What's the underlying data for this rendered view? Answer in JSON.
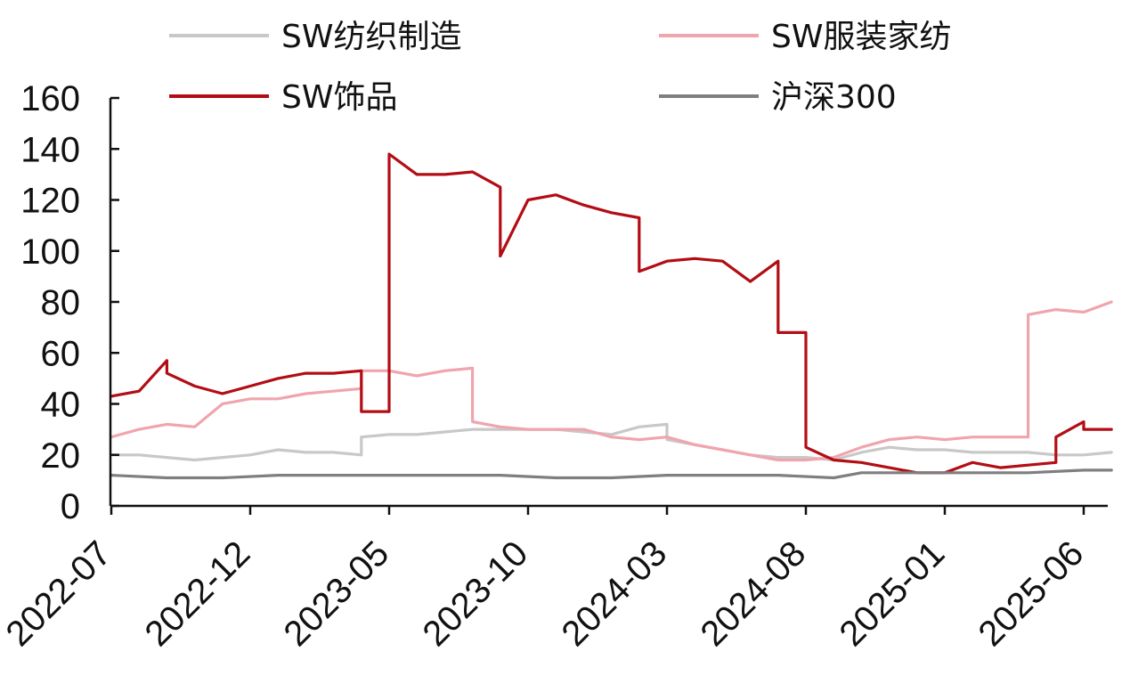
{
  "chart_data": {
    "type": "line",
    "title": "",
    "xlabel": "",
    "ylabel": "",
    "ylim": [
      0,
      160
    ],
    "yticks": [
      0,
      20,
      40,
      60,
      80,
      100,
      120,
      140,
      160
    ],
    "xlim": [
      "2022-07",
      "2025-06"
    ],
    "xticks": [
      "2022-07",
      "2022-12",
      "2023-05",
      "2023-10",
      "2024-03",
      "2024-08",
      "2025-01",
      "2025-06"
    ],
    "legend": "top",
    "grid": false,
    "series": [
      {
        "name": "SW纺织制造",
        "color": "#c8c8c8",
        "points": [
          [
            "2022-07",
            20
          ],
          [
            "2022-08",
            20
          ],
          [
            "2022-09",
            19
          ],
          [
            "2022-10",
            18
          ],
          [
            "2022-11",
            19
          ],
          [
            "2022-12",
            20
          ],
          [
            "2023-01",
            22
          ],
          [
            "2023-02",
            21
          ],
          [
            "2023-03",
            21
          ],
          [
            "2023-04",
            20
          ],
          [
            "2023-04",
            27
          ],
          [
            "2023-05",
            28
          ],
          [
            "2023-06",
            28
          ],
          [
            "2023-07",
            29
          ],
          [
            "2023-08",
            30
          ],
          [
            "2023-09",
            30
          ],
          [
            "2023-10",
            30
          ],
          [
            "2023-11",
            30
          ],
          [
            "2023-12",
            29
          ],
          [
            "2024-01",
            28
          ],
          [
            "2024-02",
            31
          ],
          [
            "2024-03",
            32
          ],
          [
            "2024-03",
            26
          ],
          [
            "2024-04",
            24
          ],
          [
            "2024-05",
            22
          ],
          [
            "2024-06",
            20
          ],
          [
            "2024-07",
            19
          ],
          [
            "2024-08",
            19
          ],
          [
            "2024-09",
            18
          ],
          [
            "2024-10",
            21
          ],
          [
            "2024-11",
            23
          ],
          [
            "2024-12",
            22
          ],
          [
            "2025-01",
            22
          ],
          [
            "2025-02",
            21
          ],
          [
            "2025-03",
            21
          ],
          [
            "2025-04",
            21
          ],
          [
            "2025-05",
            20
          ],
          [
            "2025-06",
            20
          ],
          [
            "2025-07",
            21
          ]
        ]
      },
      {
        "name": "SW服装家纺",
        "color": "#f0a5ad",
        "points": [
          [
            "2022-07",
            27
          ],
          [
            "2022-08",
            30
          ],
          [
            "2022-09",
            32
          ],
          [
            "2022-10",
            31
          ],
          [
            "2022-11",
            40
          ],
          [
            "2022-12",
            42
          ],
          [
            "2023-01",
            42
          ],
          [
            "2023-02",
            44
          ],
          [
            "2023-03",
            45
          ],
          [
            "2023-04",
            46
          ],
          [
            "2023-04",
            53
          ],
          [
            "2023-05",
            53
          ],
          [
            "2023-06",
            51
          ],
          [
            "2023-07",
            53
          ],
          [
            "2023-08",
            54
          ],
          [
            "2023-08",
            33
          ],
          [
            "2023-09",
            31
          ],
          [
            "2023-10",
            30
          ],
          [
            "2023-11",
            30
          ],
          [
            "2023-12",
            30
          ],
          [
            "2024-01",
            27
          ],
          [
            "2024-02",
            26
          ],
          [
            "2024-03",
            27
          ],
          [
            "2024-04",
            24
          ],
          [
            "2024-05",
            22
          ],
          [
            "2024-06",
            20
          ],
          [
            "2024-07",
            18
          ],
          [
            "2024-08",
            18
          ],
          [
            "2024-09",
            19
          ],
          [
            "2024-10",
            23
          ],
          [
            "2024-11",
            26
          ],
          [
            "2024-12",
            27
          ],
          [
            "2025-01",
            26
          ],
          [
            "2025-02",
            27
          ],
          [
            "2025-03",
            27
          ],
          [
            "2025-04",
            27
          ],
          [
            "2025-04",
            75
          ],
          [
            "2025-05",
            77
          ],
          [
            "2025-06",
            76
          ],
          [
            "2025-07",
            80
          ]
        ]
      },
      {
        "name": "SW饰品",
        "color": "#b30d14",
        "points": [
          [
            "2022-07",
            43
          ],
          [
            "2022-08",
            45
          ],
          [
            "2022-09",
            57
          ],
          [
            "2022-09",
            52
          ],
          [
            "2022-10",
            47
          ],
          [
            "2022-11",
            44
          ],
          [
            "2022-12",
            47
          ],
          [
            "2023-01",
            50
          ],
          [
            "2023-02",
            52
          ],
          [
            "2023-03",
            52
          ],
          [
            "2023-04",
            53
          ],
          [
            "2023-04",
            37
          ],
          [
            "2023-05",
            37
          ],
          [
            "2023-05",
            138
          ],
          [
            "2023-06",
            130
          ],
          [
            "2023-07",
            130
          ],
          [
            "2023-08",
            131
          ],
          [
            "2023-09",
            125
          ],
          [
            "2023-09",
            98
          ],
          [
            "2023-10",
            120
          ],
          [
            "2023-11",
            122
          ],
          [
            "2023-12",
            118
          ],
          [
            "2024-01",
            115
          ],
          [
            "2024-02",
            113
          ],
          [
            "2024-02",
            92
          ],
          [
            "2024-03",
            96
          ],
          [
            "2024-04",
            97
          ],
          [
            "2024-05",
            96
          ],
          [
            "2024-06",
            88
          ],
          [
            "2024-07",
            96
          ],
          [
            "2024-07",
            68
          ],
          [
            "2024-08",
            68
          ],
          [
            "2024-08",
            23
          ],
          [
            "2024-09",
            18
          ],
          [
            "2024-10",
            17
          ],
          [
            "2024-11",
            15
          ],
          [
            "2024-12",
            13
          ],
          [
            "2025-01",
            13
          ],
          [
            "2025-02",
            17
          ],
          [
            "2025-03",
            15
          ],
          [
            "2025-04",
            16
          ],
          [
            "2025-05",
            17
          ],
          [
            "2025-05",
            27
          ],
          [
            "2025-06",
            33
          ],
          [
            "2025-06",
            30
          ],
          [
            "2025-07",
            30
          ]
        ]
      },
      {
        "name": "沪深300",
        "color": "#7f7f7f",
        "points": [
          [
            "2022-07",
            12
          ],
          [
            "2022-09",
            11
          ],
          [
            "2022-11",
            11
          ],
          [
            "2023-01",
            12
          ],
          [
            "2023-03",
            12
          ],
          [
            "2023-05",
            12
          ],
          [
            "2023-07",
            12
          ],
          [
            "2023-09",
            12
          ],
          [
            "2023-11",
            11
          ],
          [
            "2024-01",
            11
          ],
          [
            "2024-03",
            12
          ],
          [
            "2024-05",
            12
          ],
          [
            "2024-07",
            12
          ],
          [
            "2024-09",
            11
          ],
          [
            "2024-10",
            13
          ],
          [
            "2024-12",
            13
          ],
          [
            "2025-02",
            13
          ],
          [
            "2025-04",
            13
          ],
          [
            "2025-06",
            14
          ],
          [
            "2025-07",
            14
          ]
        ]
      }
    ]
  }
}
